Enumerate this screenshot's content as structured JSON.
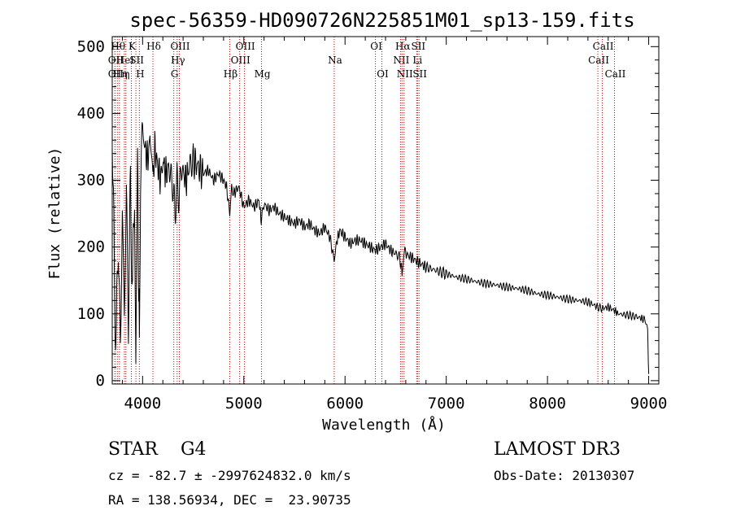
{
  "chart_data": {
    "type": "line",
    "title": "spec-56359-HD090726N225851M01_sp13-159.fits",
    "xlabel": "Wavelength (Å)",
    "ylabel": "Flux (relative)",
    "xlim": [
      3700,
      9100
    ],
    "ylim": [
      -5,
      515
    ],
    "xticks": [
      4000,
      5000,
      6000,
      7000,
      8000,
      9000
    ],
    "yticks": [
      0,
      100,
      200,
      300,
      400,
      500
    ],
    "series": [
      {
        "name": "flux",
        "x": [
          3700,
          3720,
          3740,
          3760,
          3780,
          3800,
          3820,
          3840,
          3860,
          3880,
          3900,
          3920,
          3933,
          3950,
          3968,
          3980,
          4000,
          4020,
          4050,
          4080,
          4101,
          4120,
          4150,
          4180,
          4200,
          4230,
          4260,
          4300,
          4320,
          4340,
          4360,
          4380,
          4400,
          4430,
          4460,
          4500,
          4550,
          4600,
          4650,
          4700,
          4750,
          4800,
          4830,
          4861,
          4880,
          4900,
          4950,
          5000,
          5050,
          5100,
          5150,
          5172,
          5200,
          5250,
          5300,
          5350,
          5400,
          5450,
          5500,
          5550,
          5600,
          5650,
          5700,
          5750,
          5800,
          5850,
          5893,
          5920,
          5950,
          6000,
          6050,
          6100,
          6150,
          6200,
          6250,
          6300,
          6350,
          6400,
          6450,
          6500,
          6540,
          6563,
          6580,
          6600,
          6650,
          6700,
          6750,
          6800,
          6900,
          7000,
          7100,
          7200,
          7300,
          7400,
          7500,
          7600,
          7700,
          7800,
          7900,
          8000,
          8100,
          8200,
          8300,
          8400,
          8498,
          8542,
          8600,
          8662,
          8700,
          8800,
          8900,
          8950,
          8970,
          8990,
          9000
        ],
        "y": [
          400,
          150,
          60,
          220,
          40,
          250,
          100,
          280,
          90,
          300,
          120,
          310,
          60,
          330,
          40,
          310,
          380,
          350,
          330,
          370,
          300,
          350,
          320,
          300,
          330,
          310,
          320,
          290,
          250,
          300,
          270,
          320,
          310,
          300,
          320,
          330,
          320,
          310,
          315,
          300,
          310,
          300,
          290,
          250,
          290,
          280,
          290,
          260,
          270,
          260,
          270,
          240,
          265,
          255,
          260,
          250,
          245,
          240,
          235,
          240,
          230,
          235,
          225,
          220,
          230,
          215,
          180,
          210,
          225,
          215,
          205,
          210,
          210,
          205,
          200,
          195,
          200,
          205,
          195,
          190,
          185,
          160,
          195,
          190,
          185,
          180,
          175,
          170,
          165,
          160,
          155,
          152,
          148,
          145,
          143,
          140,
          138,
          135,
          130,
          128,
          125,
          122,
          120,
          118,
          110,
          108,
          110,
          105,
          100,
          98,
          95,
          92,
          90,
          75,
          10
        ]
      }
    ],
    "lines": [
      {
        "wave": 3727,
        "label": "OII",
        "row": 2
      },
      {
        "wave": 3727,
        "label": "OII",
        "row": 3
      },
      {
        "wave": 3750,
        "label": "Hθ",
        "row": 1
      },
      {
        "wave": 3771,
        "label": "Hη",
        "row": 3
      },
      {
        "wave": 3820,
        "label": "HeI",
        "row": 2
      },
      {
        "wave": 3835,
        "label": "η",
        "row": 3
      },
      {
        "wave": 3889,
        "label": "K",
        "row": 1
      },
      {
        "wave": 3934,
        "label": "SII",
        "row": 2
      },
      {
        "wave": 3968,
        "label": "H",
        "row": 3
      },
      {
        "wave": 4102,
        "label": "Hδ",
        "row": 1
      },
      {
        "wave": 4308,
        "label": "G",
        "row": 3
      },
      {
        "wave": 4341,
        "label": "Hγ",
        "row": 2
      },
      {
        "wave": 4363,
        "label": "OIII",
        "row": 1
      },
      {
        "wave": 4861,
        "label": "Hβ",
        "row": 3
      },
      {
        "wave": 4959,
        "label": "OIII",
        "row": 2
      },
      {
        "wave": 5007,
        "label": "OIII",
        "row": 1
      },
      {
        "wave": 5175,
        "label": "Mg",
        "row": 3
      },
      {
        "wave": 5893,
        "label": "Na",
        "row": 2
      },
      {
        "wave": 6300,
        "label": "OI",
        "row": 1
      },
      {
        "wave": 6364,
        "label": "OI",
        "row": 3
      },
      {
        "wave": 6548,
        "label": "NII",
        "row": 2
      },
      {
        "wave": 6563,
        "label": "Hα",
        "row": 1
      },
      {
        "wave": 6583,
        "label": "NII",
        "row": 3
      },
      {
        "wave": 6708,
        "label": "Li",
        "row": 2
      },
      {
        "wave": 6716,
        "label": "SII",
        "row": 1
      },
      {
        "wave": 6731,
        "label": "SII",
        "row": 3
      },
      {
        "wave": 8498,
        "label": "CaII",
        "row": 2
      },
      {
        "wave": 8542,
        "label": "CaII",
        "row": 1
      },
      {
        "wave": 8662,
        "label": "CaII",
        "row": 3
      }
    ]
  },
  "info": {
    "class_line": "STAR    G4",
    "survey": "LAMOST DR3",
    "cz_line": "cz = -82.7 ± -2997624832.0 km/s",
    "obs_date": "Obs-Date: 20130307",
    "coords_line": "RA = 138.56934, DEC =  23.90735"
  },
  "colors": {
    "spectrum": "#000000",
    "line_markers": "#cc0000",
    "axes": "#000000"
  }
}
